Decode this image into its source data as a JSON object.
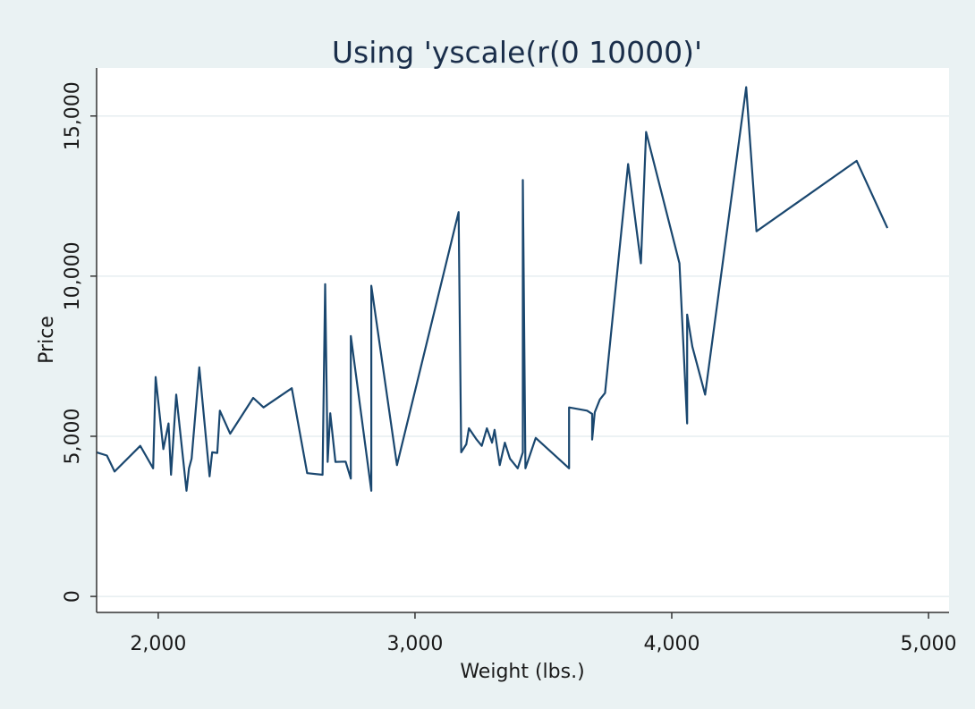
{
  "chart_data": {
    "type": "line",
    "title": "Using 'yscale(r(0 10000)'",
    "xlabel": "Weight (lbs.)",
    "ylabel": "Price",
    "xlim": [
      1760,
      5080
    ],
    "ylim": [
      -500,
      16500
    ],
    "xticks": [
      2000,
      3000,
      4000,
      5000
    ],
    "xtick_labels": [
      "2,000",
      "3,000",
      "4,000",
      "5,000"
    ],
    "yticks": [
      0,
      5000,
      10000,
      15000
    ],
    "ytick_labels": [
      "0",
      "5,000",
      "10,000",
      "15,000"
    ],
    "grid": true,
    "colors": {
      "line": "#1a476f",
      "plot_bg": "#ffffff",
      "page_bg": "#eaf2f3",
      "grid": "#e6eef0"
    },
    "x": [
      1760,
      1800,
      1830,
      1930,
      1980,
      1990,
      2020,
      2040,
      2050,
      2070,
      2110,
      2120,
      2130,
      2160,
      2200,
      2210,
      2230,
      2240,
      2280,
      2370,
      2410,
      2520,
      2580,
      2640,
      2650,
      2660,
      2670,
      2690,
      2730,
      2750,
      2750,
      2830,
      2830,
      2930,
      3170,
      3180,
      3200,
      3210,
      3240,
      3260,
      3280,
      3300,
      3310,
      3330,
      3350,
      3370,
      3380,
      3400,
      3420,
      3420,
      3430,
      3470,
      3600,
      3600,
      3670,
      3690,
      3690,
      3700,
      3720,
      3740,
      3830,
      3880,
      3900,
      4030,
      4060,
      4060,
      4080,
      4130,
      4290,
      4330,
      4720,
      4840
    ],
    "y": [
      4500,
      4400,
      3900,
      4700,
      4000,
      6850,
      4600,
      5400,
      3800,
      6300,
      3300,
      4000,
      4300,
      7150,
      3750,
      4500,
      4480,
      5800,
      5080,
      6200,
      5900,
      6500,
      3850,
      3800,
      9750,
      4200,
      5720,
      4200,
      4210,
      3680,
      8130,
      3300,
      9700,
      4100,
      12000,
      4500,
      4750,
      5250,
      4900,
      4700,
      5250,
      4800,
      5200,
      4100,
      4800,
      4300,
      4200,
      4000,
      4500,
      13000,
      4000,
      4950,
      4000,
      5900,
      5800,
      5700,
      4900,
      5750,
      6150,
      6350,
      13500,
      10400,
      14500,
      10400,
      5400,
      8800,
      7800,
      6300,
      15900,
      11400,
      13600,
      11500
    ]
  }
}
